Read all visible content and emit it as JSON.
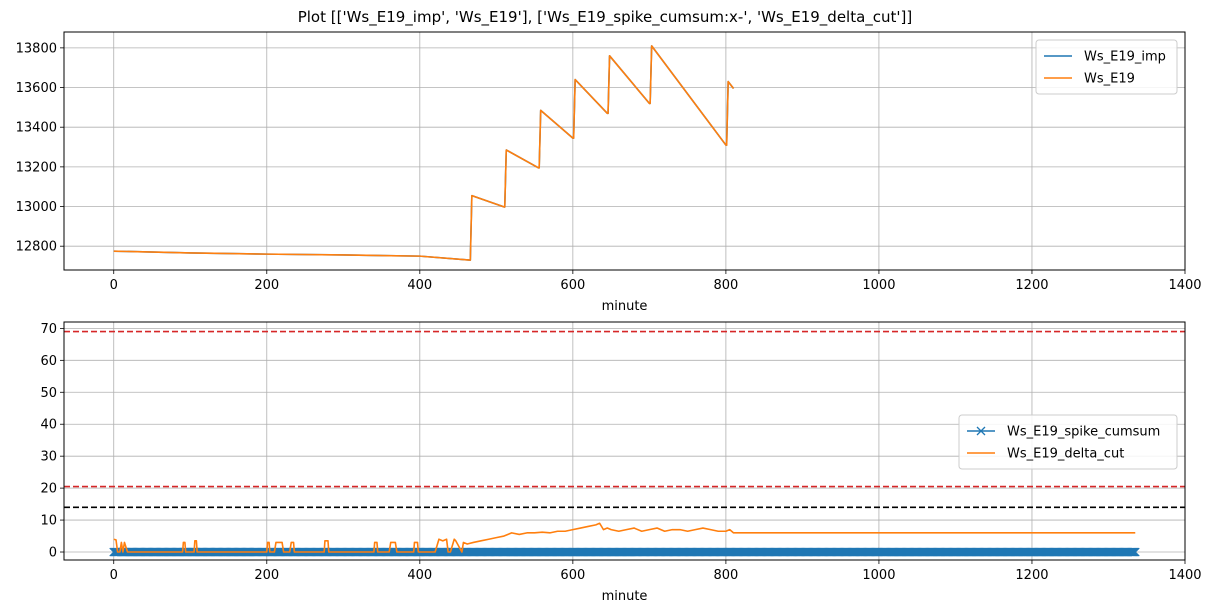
{
  "suptitle": "Plot [['Ws_E19_imp', 'Ws_E19'], ['Ws_E19_spike_cumsum:x-', 'Ws_E19_delta_cut']]",
  "colors": {
    "blue": "#1f77b4",
    "orange": "#ff7f0e",
    "red": "#d62728",
    "black": "#000000",
    "grid": "#b0b0b0"
  },
  "chart_data": [
    {
      "type": "line",
      "xlabel": "minute",
      "ylabel": "",
      "xlim": [
        -65,
        1400
      ],
      "ylim": [
        12680,
        13880
      ],
      "xticks": [
        0,
        200,
        400,
        600,
        800,
        1000,
        1200,
        1400
      ],
      "yticks": [
        12800,
        13000,
        13200,
        13400,
        13600,
        13800
      ],
      "grid": true,
      "legend": "top-right",
      "series": [
        {
          "name": "Ws_E19_imp",
          "color": "#1f77b4",
          "x": [
            0,
            100,
            200,
            300,
            400,
            465,
            466,
            468,
            510,
            511,
            513,
            555,
            556,
            558,
            600,
            601,
            603,
            645,
            646,
            648,
            700,
            701,
            703,
            800,
            801,
            803,
            810
          ],
          "y": [
            12775,
            12766,
            12760,
            12756,
            12750,
            12730,
            12730,
            13055,
            12998,
            12998,
            13285,
            13195,
            13195,
            13485,
            13345,
            13345,
            13640,
            13470,
            13470,
            13760,
            13520,
            13520,
            13810,
            13310,
            13310,
            13630,
            13595
          ]
        },
        {
          "name": "Ws_E19",
          "color": "#ff7f0e",
          "x": [
            0,
            100,
            200,
            300,
            400,
            465,
            466,
            468,
            510,
            511,
            513,
            555,
            556,
            558,
            600,
            601,
            603,
            645,
            646,
            648,
            700,
            701,
            703,
            800,
            801,
            803,
            810
          ],
          "y": [
            12775,
            12766,
            12760,
            12756,
            12750,
            12730,
            12730,
            13055,
            12998,
            12998,
            13285,
            13195,
            13195,
            13485,
            13345,
            13345,
            13640,
            13470,
            13470,
            13760,
            13520,
            13520,
            13810,
            13310,
            13310,
            13630,
            13595
          ]
        }
      ],
      "hlines": []
    },
    {
      "type": "line",
      "xlabel": "minute",
      "ylabel": "",
      "xlim": [
        -65,
        1400
      ],
      "ylim": [
        -2.5,
        72
      ],
      "xticks": [
        0,
        200,
        400,
        600,
        800,
        1000,
        1200,
        1400
      ],
      "yticks": [
        0,
        10,
        20,
        30,
        40,
        50,
        60,
        70
      ],
      "grid": true,
      "legend": "center-right",
      "series": [
        {
          "name": "Ws_E19_spike_cumsum",
          "color": "#1f77b4",
          "marker": "x",
          "x_range": [
            0,
            1335
          ],
          "value": 0
        },
        {
          "name": "Ws_E19_delta_cut",
          "color": "#ff7f0e",
          "x": [
            0,
            3,
            5,
            8,
            10,
            12,
            14,
            18,
            20,
            30,
            90,
            91,
            93,
            94,
            105,
            106,
            108,
            109,
            120,
            200,
            201,
            203,
            204,
            210,
            212,
            220,
            222,
            230,
            232,
            235,
            236,
            238,
            239,
            275,
            276,
            280,
            281,
            340,
            341,
            344,
            345,
            360,
            362,
            368,
            370,
            392,
            393,
            397,
            398,
            420,
            425,
            430,
            435,
            437,
            440,
            445,
            447,
            455,
            457,
            462,
            470,
            480,
            490,
            500,
            510,
            520,
            530,
            540,
            550,
            560,
            570,
            580,
            590,
            600,
            610,
            620,
            630,
            635,
            640,
            645,
            650,
            660,
            670,
            680,
            690,
            700,
            710,
            720,
            730,
            740,
            750,
            760,
            770,
            780,
            790,
            800,
            805,
            810,
            1335
          ],
          "y": [
            4,
            3.8,
            0,
            0,
            3,
            0,
            3,
            0,
            0,
            0,
            0,
            3,
            3,
            0,
            0,
            3.5,
            3.5,
            0,
            0,
            0,
            3,
            3,
            0,
            0,
            3,
            3,
            0,
            0,
            3,
            3,
            0,
            0,
            0,
            0,
            3.5,
            3.5,
            0,
            0,
            3,
            3,
            0,
            0,
            3,
            3,
            0,
            0,
            3,
            3,
            0,
            0,
            4,
            3.5,
            4,
            0,
            0,
            4,
            3.5,
            0,
            3,
            2.5,
            3,
            3.5,
            4,
            4.5,
            5,
            6,
            5.5,
            6,
            6,
            6.2,
            6,
            6.5,
            6.5,
            7,
            7.5,
            8,
            8.5,
            9,
            7,
            7.5,
            7,
            6.5,
            7,
            7.5,
            6.5,
            7,
            7.5,
            6.5,
            7,
            7,
            6.5,
            7,
            7.5,
            7,
            6.5,
            6.5,
            7,
            6,
            6
          ]
        }
      ],
      "hlines": [
        {
          "y": 69,
          "color": "#d62728"
        },
        {
          "y": 20.5,
          "color": "#d62728"
        },
        {
          "y": 14,
          "color": "#000000"
        }
      ]
    }
  ]
}
